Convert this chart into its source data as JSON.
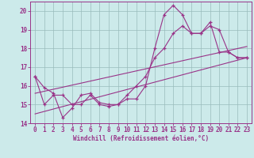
{
  "xlabel": "Windchill (Refroidissement éolien,°C)",
  "bg_color": "#cceaea",
  "line_color": "#993388",
  "grid_color": "#99bbbb",
  "xlim": [
    -0.5,
    23.5
  ],
  "ylim": [
    14,
    20.5
  ],
  "yticks": [
    14,
    15,
    16,
    17,
    18,
    19,
    20
  ],
  "xticks": [
    0,
    1,
    2,
    3,
    4,
    5,
    6,
    7,
    8,
    9,
    10,
    11,
    12,
    13,
    14,
    15,
    16,
    17,
    18,
    19,
    20,
    21,
    22,
    23
  ],
  "series": [
    {
      "x": [
        0,
        1,
        2,
        3,
        4,
        5,
        6,
        7,
        8,
        9,
        10,
        11,
        12,
        13,
        14,
        15,
        16,
        17,
        18,
        19,
        20,
        21,
        22,
        23
      ],
      "y": [
        16.5,
        15.9,
        15.6,
        14.3,
        14.8,
        15.5,
        15.6,
        15.1,
        15.0,
        15.0,
        15.3,
        15.3,
        16.0,
        18.0,
        19.8,
        20.3,
        19.8,
        18.8,
        18.8,
        19.4,
        17.8,
        17.8,
        17.5,
        17.5
      ],
      "marker": true
    },
    {
      "x": [
        0,
        1,
        2,
        3,
        4,
        5,
        6,
        7,
        8,
        9,
        10,
        11,
        12,
        13,
        14,
        15,
        16,
        17,
        18,
        19,
        20,
        21,
        22,
        23
      ],
      "y": [
        16.5,
        15.0,
        15.5,
        15.5,
        15.0,
        15.0,
        15.5,
        15.0,
        14.9,
        15.0,
        15.5,
        16.0,
        16.5,
        17.5,
        18.0,
        18.8,
        19.2,
        18.8,
        18.8,
        19.2,
        19.0,
        17.8,
        17.5,
        17.5
      ],
      "marker": true
    },
    {
      "x": [
        0,
        23
      ],
      "y": [
        14.5,
        17.5
      ],
      "marker": false
    },
    {
      "x": [
        0,
        23
      ],
      "y": [
        15.6,
        18.1
      ],
      "marker": false
    }
  ]
}
